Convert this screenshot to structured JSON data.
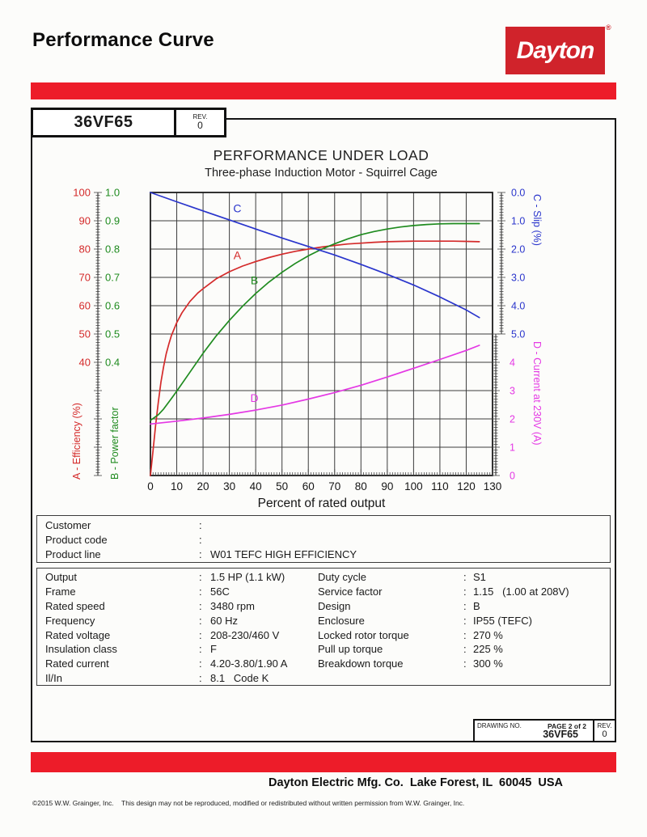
{
  "page": {
    "title": "Performance Curve",
    "brand": {
      "name": "Dayton",
      "registered": "®"
    },
    "model": "36VF65",
    "rev_label": "REV.",
    "rev_value": "0"
  },
  "colors": {
    "accent_red": "#ed1c29",
    "logo_red": "#d0232b",
    "series_a_red": "#d42a2a",
    "series_b_green": "#1f8b1f",
    "series_c_blue": "#2a35cc",
    "series_d_magenta": "#e438e4"
  },
  "chart_data": {
    "type": "line",
    "title": "PERFORMANCE UNDER LOAD",
    "subtitle": "Three-phase Induction Motor - Squirrel Cage",
    "xlabel": "Percent of rated output",
    "x_range": [
      0,
      130
    ],
    "x_ticks": [
      "0",
      "10",
      "20",
      "30",
      "40",
      "50",
      "60",
      "70",
      "80",
      "90",
      "100",
      "110",
      "120",
      "130"
    ],
    "grid": true,
    "axes": [
      {
        "id": "eff",
        "label": "A - Efficiency (%)",
        "side": "left",
        "color": "#d42a2a",
        "range": [
          0,
          100
        ],
        "tick_labels": [
          "100",
          "90",
          "80",
          "70",
          "60",
          "50",
          "40"
        ]
      },
      {
        "id": "pf",
        "label": "B - Power factor",
        "side": "left",
        "color": "#1f8b1f",
        "range": [
          0,
          1
        ],
        "tick_labels": [
          "1.0",
          "0.9",
          "0.8",
          "0.7",
          "0.6",
          "0.5",
          "0.4"
        ]
      },
      {
        "id": "slip",
        "label": "C - Slip (%)",
        "side": "right",
        "color": "#2a35cc",
        "range": [
          0,
          5
        ],
        "tick_labels": [
          "0.0",
          "1.0",
          "2.0",
          "3.0",
          "4.0",
          "5.0"
        ]
      },
      {
        "id": "cur",
        "label": "D - Current at 230V (A)",
        "side": "right",
        "color": "#e438e4",
        "range": [
          0,
          5
        ],
        "tick_labels": [
          "4",
          "3",
          "2",
          "1",
          "0"
        ]
      }
    ],
    "series": [
      {
        "name": "A",
        "axis": "eff",
        "color": "#d42a2a",
        "points": [
          [
            0,
            0
          ],
          [
            1,
            9
          ],
          [
            2,
            18
          ],
          [
            3,
            26
          ],
          [
            4,
            33
          ],
          [
            5,
            38.5
          ],
          [
            6,
            43
          ],
          [
            7,
            46.5
          ],
          [
            8,
            49.5
          ],
          [
            10,
            54
          ],
          [
            12,
            57.5
          ],
          [
            15,
            61.5
          ],
          [
            18,
            64.5
          ],
          [
            20,
            66
          ],
          [
            25,
            69.5
          ],
          [
            30,
            72
          ],
          [
            35,
            74
          ],
          [
            40,
            75.6
          ],
          [
            45,
            77
          ],
          [
            50,
            78.2
          ],
          [
            55,
            79.2
          ],
          [
            60,
            80
          ],
          [
            65,
            80.7
          ],
          [
            70,
            81.3
          ],
          [
            75,
            81.8
          ],
          [
            80,
            82.1
          ],
          [
            85,
            82.4
          ],
          [
            90,
            82.6
          ],
          [
            95,
            82.7
          ],
          [
            100,
            82.8
          ],
          [
            105,
            82.8
          ],
          [
            110,
            82.8
          ],
          [
            115,
            82.8
          ],
          [
            120,
            82.7
          ],
          [
            125,
            82.6
          ]
        ],
        "label_at": [
          33,
          76.5
        ]
      },
      {
        "name": "B",
        "axis": "pf",
        "color": "#1f8b1f",
        "points": [
          [
            0,
            0.195
          ],
          [
            3,
            0.215
          ],
          [
            5,
            0.235
          ],
          [
            8,
            0.272
          ],
          [
            10,
            0.298
          ],
          [
            15,
            0.365
          ],
          [
            20,
            0.432
          ],
          [
            25,
            0.493
          ],
          [
            30,
            0.548
          ],
          [
            35,
            0.598
          ],
          [
            40,
            0.643
          ],
          [
            45,
            0.683
          ],
          [
            50,
            0.718
          ],
          [
            55,
            0.749
          ],
          [
            60,
            0.776
          ],
          [
            65,
            0.799
          ],
          [
            70,
            0.819
          ],
          [
            75,
            0.836
          ],
          [
            80,
            0.851
          ],
          [
            85,
            0.862
          ],
          [
            90,
            0.871
          ],
          [
            95,
            0.878
          ],
          [
            100,
            0.883
          ],
          [
            105,
            0.887
          ],
          [
            110,
            0.889
          ],
          [
            115,
            0.89
          ],
          [
            120,
            0.89
          ],
          [
            125,
            0.89
          ]
        ],
        "label_at": [
          39.5,
          0.676
        ]
      },
      {
        "name": "C",
        "axis": "slip",
        "color": "#2a35cc",
        "points": [
          [
            0,
            0
          ],
          [
            10,
            0.33
          ],
          [
            20,
            0.65
          ],
          [
            30,
            0.97
          ],
          [
            40,
            1.29
          ],
          [
            50,
            1.61
          ],
          [
            60,
            1.91
          ],
          [
            70,
            2.21
          ],
          [
            80,
            2.54
          ],
          [
            90,
            2.89
          ],
          [
            100,
            3.27
          ],
          [
            110,
            3.69
          ],
          [
            120,
            4.15
          ],
          [
            125,
            4.42
          ]
        ],
        "label_at": [
          33,
          0.7
        ]
      },
      {
        "name": "D",
        "axis": "cur",
        "color": "#e438e4",
        "points": [
          [
            0,
            1.82
          ],
          [
            10,
            1.92
          ],
          [
            20,
            2.03
          ],
          [
            30,
            2.16
          ],
          [
            40,
            2.31
          ],
          [
            50,
            2.49
          ],
          [
            60,
            2.7
          ],
          [
            70,
            2.93
          ],
          [
            80,
            3.19
          ],
          [
            90,
            3.48
          ],
          [
            100,
            3.79
          ],
          [
            110,
            4.1
          ],
          [
            120,
            4.42
          ],
          [
            125,
            4.6
          ]
        ],
        "label_at": [
          39.5,
          2.6
        ]
      }
    ]
  },
  "customer": {
    "separator": ":",
    "rows": [
      {
        "label": "Customer",
        "value": ""
      },
      {
        "label": "Product code",
        "value": ""
      },
      {
        "label": "Product line",
        "value": "W01 TEFC HIGH EFFICIENCY"
      }
    ]
  },
  "specs": {
    "separator": ":",
    "left": [
      {
        "label": "Output",
        "value": "1.5 HP (1.1 kW)"
      },
      {
        "label": "Frame",
        "value": "56C"
      },
      {
        "label": "Rated speed",
        "value": "3480 rpm"
      },
      {
        "label": "Frequency",
        "value": "60 Hz"
      },
      {
        "label": "Rated voltage",
        "value": "208-230/460 V"
      },
      {
        "label": "Insulation class",
        "value": "F"
      },
      {
        "label": "Rated current",
        "value": "4.20-3.80/1.90 A"
      },
      {
        "label": "Il/In",
        "value": "8.1   Code K"
      }
    ],
    "right": [
      {
        "label": "Duty cycle",
        "value": "S1"
      },
      {
        "label": "Service factor",
        "value": "1.15   (1.00 at 208V)"
      },
      {
        "label": "Design",
        "value": "B"
      },
      {
        "label": "Enclosure",
        "value": "IP55 (TEFC)"
      },
      {
        "label": "Locked rotor torque",
        "value": "270 %"
      },
      {
        "label": "Pull up torque",
        "value": "225 %"
      },
      {
        "label": "Breakdown torque",
        "value": "300 %"
      }
    ]
  },
  "footer": {
    "drawing_no_label": "DRAWING NO.",
    "page_label": "PAGE 2 of 2",
    "drawing_no": "36VF65",
    "rev_label": "REV.",
    "rev_value": "0",
    "address": "Dayton Electric Mfg. Co.  Lake Forest, IL  60045  USA",
    "copyright": "©2015 W.W. Grainger, Inc.    This design may not be reproduced, modified or redistributed without written permission from W.W. Grainger, Inc."
  }
}
